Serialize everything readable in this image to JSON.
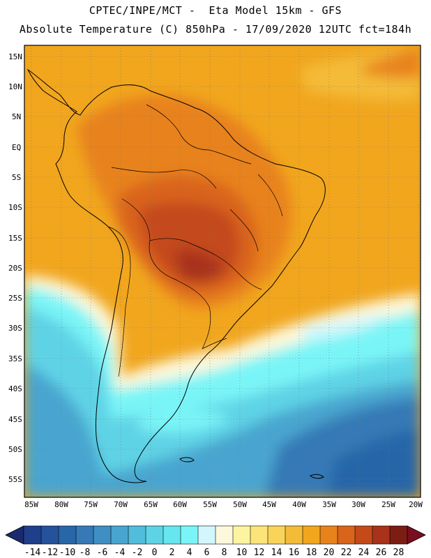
{
  "header": {
    "line1": "CPTEC/INPE/MCT -  Eta Model 15km - GFS",
    "line2": "Absolute Temperature (C) 850hPa - 17/09/2020 12UTC fct=184h"
  },
  "axes": {
    "lat_labels": [
      "15N",
      "10N",
      "5N",
      "EQ",
      "5S",
      "10S",
      "15S",
      "20S",
      "25S",
      "30S",
      "35S",
      "40S",
      "45S",
      "50S",
      "55S"
    ],
    "lon_labels": [
      "85W",
      "80W",
      "75W",
      "70W",
      "65W",
      "60W",
      "55W",
      "50W",
      "45W",
      "40W",
      "35W",
      "30W",
      "25W",
      "20W"
    ]
  },
  "colorbar": {
    "labels": [
      "-14",
      "-12",
      "-10",
      "-8",
      "-6",
      "-4",
      "-2",
      "0",
      "2",
      "4",
      "6",
      "8",
      "10",
      "12",
      "14",
      "16",
      "18",
      "20",
      "22",
      "24",
      "26",
      "28"
    ],
    "colors": [
      "#1f3f8c",
      "#24529b",
      "#2866a8",
      "#3679b6",
      "#3f8fc4",
      "#48a5cf",
      "#52bcdb",
      "#5ed3e6",
      "#66e6ef",
      "#7af5f7",
      "#d2f6fb",
      "#fdf8dc",
      "#fcf4a0",
      "#fbe57a",
      "#f9d45a",
      "#f4bb38",
      "#f1a61e",
      "#e8821a",
      "#d9641b",
      "#c44a1a",
      "#a8321a",
      "#7c1d14"
    ],
    "under_color": "#1a2a6c",
    "over_color": "#7a0e1e"
  }
}
